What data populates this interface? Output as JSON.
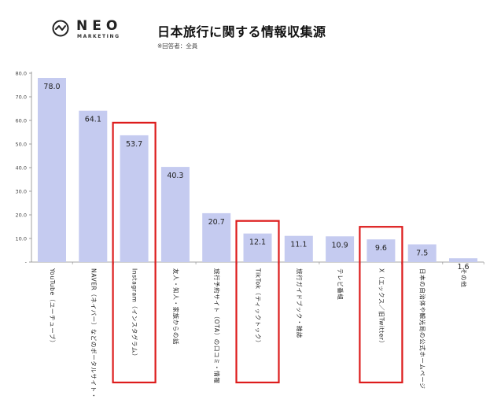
{
  "brand": {
    "word": "NEO",
    "sub": "MARKETING",
    "logo_icon": "check-wave-icon"
  },
  "title": "日本旅行に関する情報収集源",
  "note": "※回答者：全員",
  "colors": {
    "bar": "#c5cbf0",
    "highlight": "#dd1c1c",
    "axis": "#888888",
    "text": "#222222"
  },
  "chart_data": {
    "type": "bar",
    "categories": [
      "YouTube（ユーチューブ）",
      "NAVER（ネイバー）などのポータルサイト・ブログ",
      "Instagram（インスタグラム）",
      "友人・知人・家族からの話",
      "旅行予約サイト（OTA）の口コミ・情報",
      "TikTok（ティックトック）",
      "旅行ガイドブック・雑誌",
      "テレビ番組",
      "X（エックス／旧Twitter）",
      "日本の自治体や観光局の公式ホームページ",
      "その他"
    ],
    "values": [
      78.0,
      64.1,
      53.7,
      40.3,
      20.7,
      12.1,
      11.1,
      10.9,
      9.6,
      7.5,
      1.6
    ],
    "value_labels": [
      "78.0",
      "64.1",
      "53.7",
      "40.3",
      "20.7",
      "12.1",
      "11.1",
      "10.9",
      "9.6",
      "7.5",
      "1.6"
    ],
    "highlighted": [
      2,
      5,
      8
    ],
    "ylim": [
      0,
      80
    ],
    "yticks": [
      0,
      10,
      20,
      30,
      40,
      50,
      60,
      70,
      80
    ],
    "ytick_labels": [
      "-",
      "10.0",
      "20.0",
      "30.0",
      "40.0",
      "50.0",
      "60.0",
      "70.0",
      "80.0"
    ],
    "grid": false
  }
}
